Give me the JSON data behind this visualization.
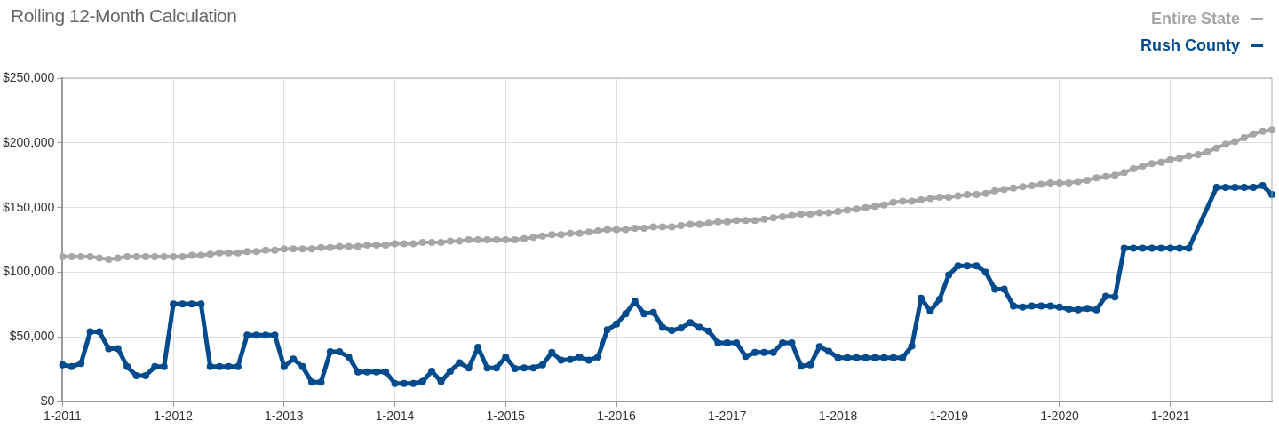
{
  "chart_data": {
    "type": "line",
    "title": "Rolling 12-Month Calculation",
    "categories": [
      "1-2011",
      null,
      null,
      null,
      null,
      null,
      null,
      null,
      null,
      null,
      null,
      null,
      "1-2012",
      null,
      null,
      null,
      null,
      null,
      null,
      null,
      null,
      null,
      null,
      null,
      "1-2013",
      null,
      null,
      null,
      null,
      null,
      null,
      null,
      null,
      null,
      null,
      null,
      "1-2014",
      null,
      null,
      null,
      null,
      null,
      null,
      null,
      null,
      null,
      null,
      null,
      "1-2015",
      null,
      null,
      null,
      null,
      null,
      null,
      null,
      null,
      null,
      null,
      null,
      "1-2016",
      null,
      null,
      null,
      null,
      null,
      null,
      null,
      null,
      null,
      null,
      null,
      "1-2017",
      null,
      null,
      null,
      null,
      null,
      null,
      null,
      null,
      null,
      null,
      null,
      "1-2018",
      null,
      null,
      null,
      null,
      null,
      null,
      null,
      null,
      null,
      null,
      null,
      "1-2019",
      null,
      null,
      null,
      null,
      null,
      null,
      null,
      null,
      null,
      null,
      null,
      "1-2020",
      null,
      null,
      null,
      null,
      null,
      null,
      null,
      null,
      null,
      null,
      null,
      "1-2021",
      null,
      null,
      null,
      null,
      null,
      null,
      null,
      null,
      null,
      null,
      null
    ],
    "series": [
      {
        "name": "Entire State",
        "color": "#a6a6a6",
        "values": [
          112000,
          112000,
          112000,
          112000,
          111000,
          110000,
          111000,
          112000,
          112000,
          112000,
          112000,
          112000,
          112000,
          112000,
          113000,
          113000,
          114000,
          115000,
          115000,
          115000,
          116000,
          116000,
          117000,
          117000,
          118000,
          118000,
          118000,
          118000,
          119000,
          119000,
          120000,
          120000,
          120000,
          121000,
          121000,
          121000,
          122000,
          122000,
          122000,
          123000,
          123000,
          123000,
          124000,
          124000,
          125000,
          125000,
          125000,
          125000,
          125000,
          125000,
          126000,
          127000,
          128000,
          129000,
          129000,
          130000,
          130000,
          131000,
          132000,
          133000,
          133000,
          133000,
          134000,
          134000,
          135000,
          135000,
          135000,
          136000,
          137000,
          137000,
          138000,
          139000,
          139000,
          140000,
          140000,
          140000,
          141000,
          142000,
          143000,
          144000,
          145000,
          145000,
          146000,
          146000,
          147000,
          148000,
          149000,
          150000,
          151000,
          152000,
          154000,
          155000,
          155000,
          156000,
          157000,
          158000,
          158000,
          159000,
          160000,
          160000,
          161000,
          163000,
          164000,
          165000,
          166000,
          167000,
          168000,
          169000,
          169000,
          169000,
          170000,
          171000,
          173000,
          174000,
          175000,
          177000,
          180000,
          182000,
          184000,
          185000,
          187000,
          188000,
          190000,
          191000,
          193000,
          196000,
          199000,
          201000,
          204000,
          207000,
          209000,
          210000
        ]
      },
      {
        "name": "Rush County",
        "color": "#004b8d",
        "values": [
          28500,
          27000,
          29500,
          54000,
          54000,
          41000,
          41000,
          27000,
          20000,
          20000,
          27000,
          27000,
          75500,
          75500,
          75500,
          75500,
          27000,
          27000,
          27000,
          27000,
          51500,
          51500,
          51500,
          51500,
          27000,
          33000,
          27000,
          15000,
          15000,
          38500,
          38500,
          34500,
          23000,
          23000,
          23000,
          23000,
          14000,
          14000,
          14000,
          15500,
          23500,
          15500,
          23500,
          30000,
          26000,
          42000,
          26000,
          26000,
          34500,
          25500,
          26000,
          26000,
          28500,
          38000,
          32000,
          32500,
          34500,
          32000,
          34500,
          55500,
          60000,
          68000,
          77500,
          68000,
          69000,
          57500,
          55000,
          57000,
          61000,
          57500,
          54500,
          45500,
          45500,
          45500,
          35000,
          38000,
          38000,
          38000,
          45500,
          45500,
          27500,
          28500,
          42500,
          39000,
          34000,
          34000,
          34000,
          34000,
          34000,
          34000,
          34000,
          34000,
          43000,
          80000,
          70000,
          79000,
          98000,
          105000,
          105000,
          105000,
          100000,
          87000,
          87000,
          74000,
          73000,
          74000,
          74000,
          74000,
          73000,
          71500,
          71000,
          72000,
          71000,
          81500,
          81000,
          118500,
          118500,
          118500,
          118500,
          118500,
          118500,
          118500,
          118500,
          null,
          null,
          165500,
          165500,
          165500,
          165500,
          165500,
          167000,
          160000
        ]
      }
    ],
    "ylim": [
      0,
      250000
    ],
    "yticks": [
      {
        "value": 0,
        "label": "$0"
      },
      {
        "value": 50000,
        "label": "$50,000"
      },
      {
        "value": 100000,
        "label": "$100,000"
      },
      {
        "value": 150000,
        "label": "$150,000"
      },
      {
        "value": 200000,
        "label": "$200,000"
      },
      {
        "value": 250000,
        "label": "$250,000"
      }
    ],
    "grid": true,
    "legend": "top right",
    "marker": "circle",
    "line_style": "solid"
  }
}
